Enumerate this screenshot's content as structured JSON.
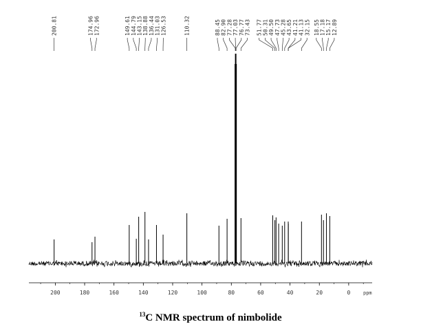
{
  "chart_data": {
    "type": "line",
    "title": "13C NMR spectrum of nimbolide",
    "title_superscript": "13",
    "title_rest": "C NMR spectrum of nimbolide",
    "xlabel": "ppm",
    "xlim": [
      218,
      -16
    ],
    "x_reversed": true,
    "xticks": [
      200,
      180,
      160,
      140,
      120,
      100,
      80,
      60,
      40,
      20,
      0
    ],
    "xtick_labels": [
      "200",
      "180",
      "160",
      "140",
      "120",
      "100",
      "80",
      "60",
      "40",
      "20",
      "0"
    ],
    "grid": false,
    "peaks": [
      {
        "ppm": 200.81,
        "label": "200.81",
        "intensity": 35
      },
      {
        "ppm": 174.96,
        "label": "174.96",
        "intensity": 31
      },
      {
        "ppm": 172.96,
        "label": "172.96",
        "intensity": 39
      },
      {
        "ppm": 149.61,
        "label": "149.61",
        "intensity": 56
      },
      {
        "ppm": 144.79,
        "label": "144.79",
        "intensity": 36
      },
      {
        "ppm": 143.15,
        "label": "143.15",
        "intensity": 68
      },
      {
        "ppm": 138.88,
        "label": "138.88",
        "intensity": 75
      },
      {
        "ppm": 136.44,
        "label": "136.44",
        "intensity": 35
      },
      {
        "ppm": 131.03,
        "label": "131.03",
        "intensity": 56
      },
      {
        "ppm": 126.53,
        "label": "126.53",
        "intensity": 42
      },
      {
        "ppm": 110.32,
        "label": "110.32",
        "intensity": 73
      },
      {
        "ppm": 88.45,
        "label": "88.45",
        "intensity": 55
      },
      {
        "ppm": 82.9,
        "label": "82.90",
        "intensity": 65
      },
      {
        "ppm": 77.28,
        "label": "77.28",
        "intensity": 290
      },
      {
        "ppm": 77.03,
        "label": "77.03",
        "intensity": 305
      },
      {
        "ppm": 76.77,
        "label": "76.77",
        "intensity": 290
      },
      {
        "ppm": 73.43,
        "label": "73.43",
        "intensity": 66
      },
      {
        "ppm": 51.77,
        "label": "51.77",
        "intensity": 70
      },
      {
        "ppm": 50.31,
        "label": "50.31",
        "intensity": 63
      },
      {
        "ppm": 49.5,
        "label": "49.50",
        "intensity": 67
      },
      {
        "ppm": 47.73,
        "label": "47.73",
        "intensity": 58
      },
      {
        "ppm": 45.28,
        "label": "45.28",
        "intensity": 55
      },
      {
        "ppm": 43.65,
        "label": "43.65",
        "intensity": 61
      },
      {
        "ppm": 41.21,
        "label": "41.21",
        "intensity": 61
      },
      {
        "ppm": 41.13,
        "label": "41.13",
        "intensity": 58
      },
      {
        "ppm": 32.15,
        "label": "32.15",
        "intensity": 61
      },
      {
        "ppm": 18.55,
        "label": "18.55",
        "intensity": 71
      },
      {
        "ppm": 17.18,
        "label": "17.18",
        "intensity": 63
      },
      {
        "ppm": 15.17,
        "label": "15.17",
        "intensity": 73
      },
      {
        "ppm": 12.89,
        "label": "12.89",
        "intensity": 69
      }
    ]
  }
}
